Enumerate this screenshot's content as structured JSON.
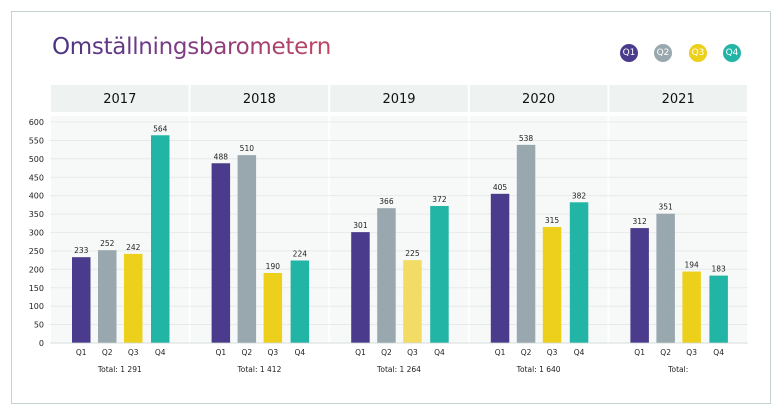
{
  "title": "Omställningsbarometern",
  "legend": [
    {
      "label": "Q1",
      "color": "#4b3b8c"
    },
    {
      "label": "Q2",
      "color": "#98a8ae"
    },
    {
      "label": "Q3",
      "color": "#ecd01b"
    },
    {
      "label": "Q4",
      "color": "#22b5a5"
    }
  ],
  "chart_data": {
    "type": "bar",
    "ylim": [
      0,
      600
    ],
    "yticks": [
      0,
      50,
      100,
      150,
      200,
      250,
      300,
      350,
      400,
      450,
      500,
      550,
      600
    ],
    "categories": [
      "Q1",
      "Q2",
      "Q3",
      "Q4"
    ],
    "groups": [
      {
        "year": "2017",
        "values": [
          233,
          252,
          242,
          564
        ],
        "total": "Total: 1 291"
      },
      {
        "year": "2018",
        "values": [
          488,
          510,
          190,
          224
        ],
        "total": "Total: 1 412"
      },
      {
        "year": "2019",
        "values": [
          301,
          366,
          225,
          372
        ],
        "total": "Total: 1 264"
      },
      {
        "year": "2020",
        "values": [
          405,
          538,
          315,
          382
        ],
        "total": "Total: 1 640"
      },
      {
        "year": "2021",
        "values": [
          312,
          351,
          194,
          183
        ],
        "total": "Total:"
      }
    ],
    "bar_colors": [
      "#4b3b8c",
      "#98a8ae",
      "#ecd01b",
      "#22b5a5"
    ],
    "highlight": {
      "year": "2019",
      "quarter": "Q3",
      "color": "#f2dc66"
    }
  }
}
